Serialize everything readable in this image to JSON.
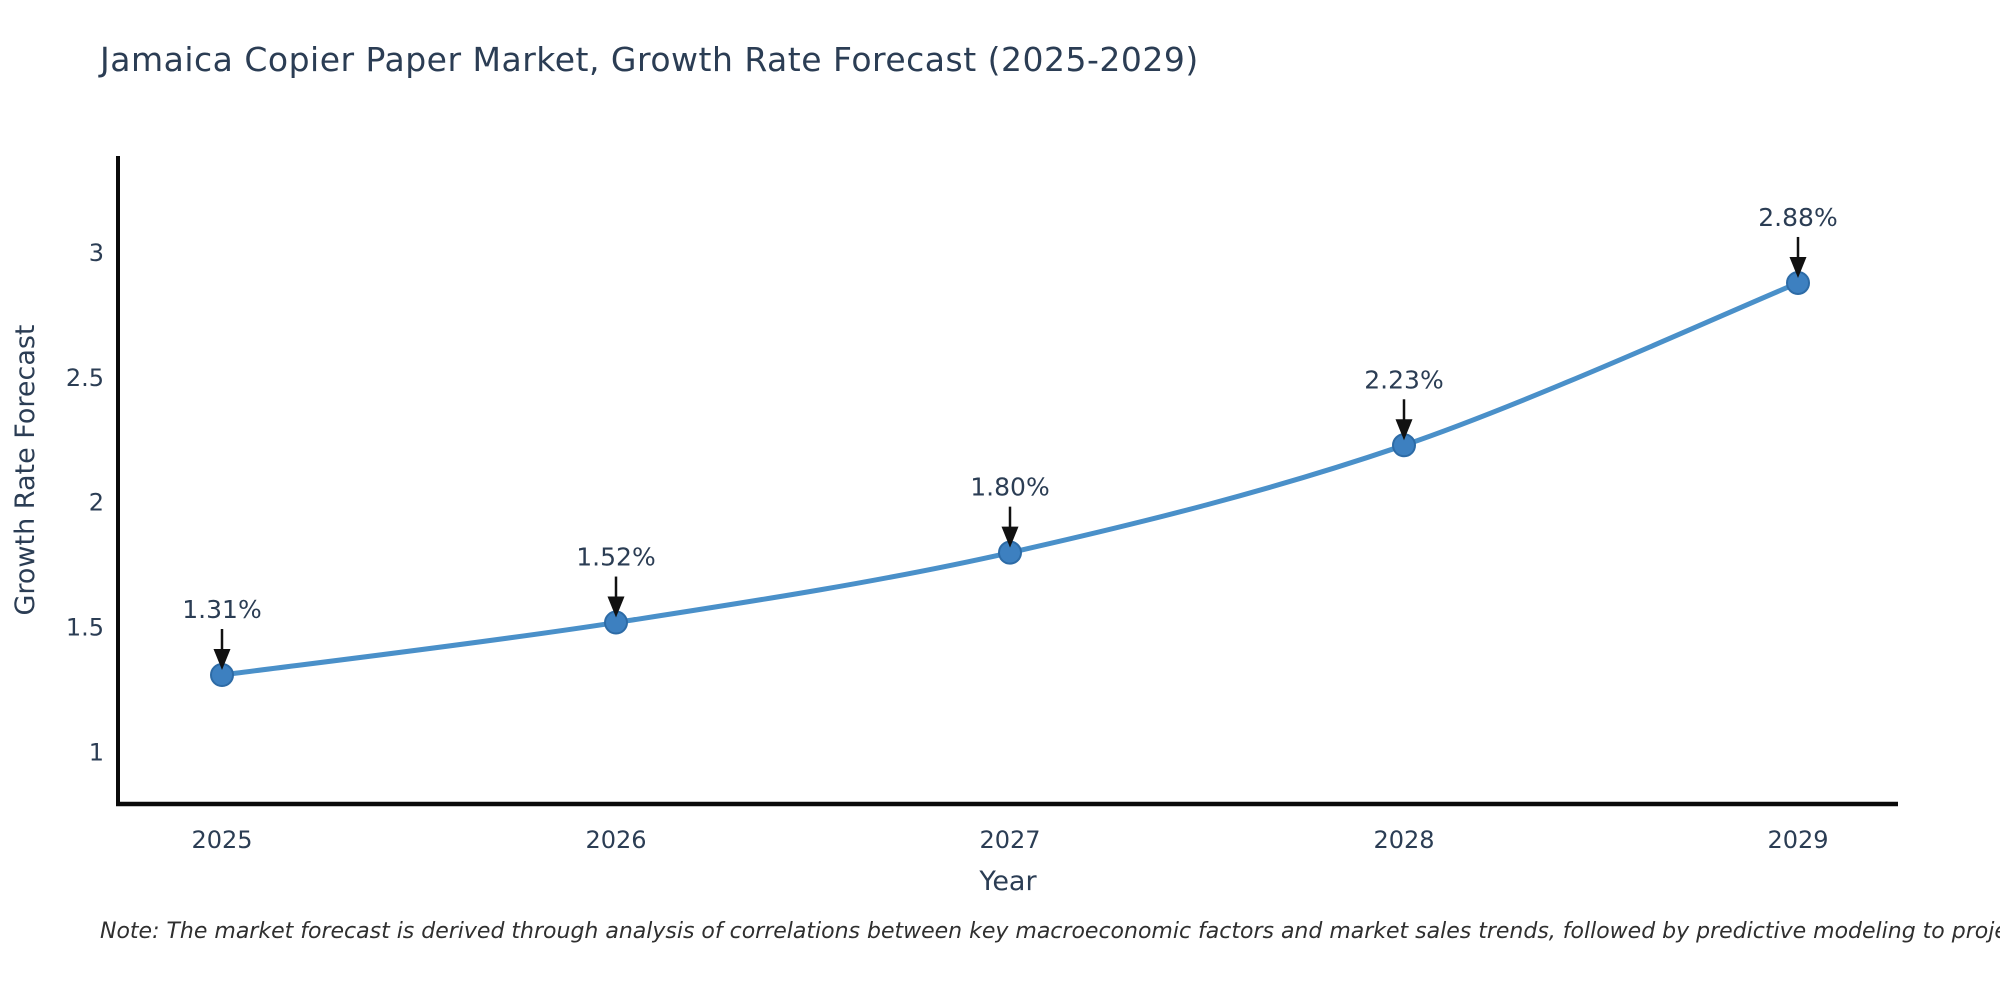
{
  "note": "Note: The market forecast is derived through analysis of correlations between key macroeconomic factors and market sales trends, followed by predictive modeling to project future sales",
  "chart_data": {
    "type": "line",
    "title": "Jamaica Copier Paper Market, Growth Rate Forecast (2025-2029)",
    "x": [
      "2025",
      "2026",
      "2027",
      "2028",
      "2029"
    ],
    "series": [
      {
        "name": "Growth Rate Forecast",
        "values": [
          1.31,
          1.52,
          1.8,
          2.23,
          2.88
        ]
      }
    ],
    "point_labels": [
      "1.31%",
      "1.52%",
      "1.80%",
      "2.23%",
      "2.88%"
    ],
    "xlabel": "Year",
    "ylabel": "Growth Rate Forecast",
    "yticks": [
      1,
      1.5,
      2,
      2.5,
      3
    ],
    "ylim": [
      0.79,
      3.4
    ],
    "grid": false,
    "legend_position": "none",
    "annotation_style": "black-arrow-down-to-point",
    "line_shape": "spline",
    "colors": {
      "line": "#4a90c9",
      "marker_fill": "#3d80c0",
      "marker_edge": "#2d6ba6",
      "axis": "#0a0a0a",
      "arrow": "#111111",
      "text": "#2b3d54",
      "note_text": "#2f2f2f",
      "background": "#ffffff"
    }
  }
}
